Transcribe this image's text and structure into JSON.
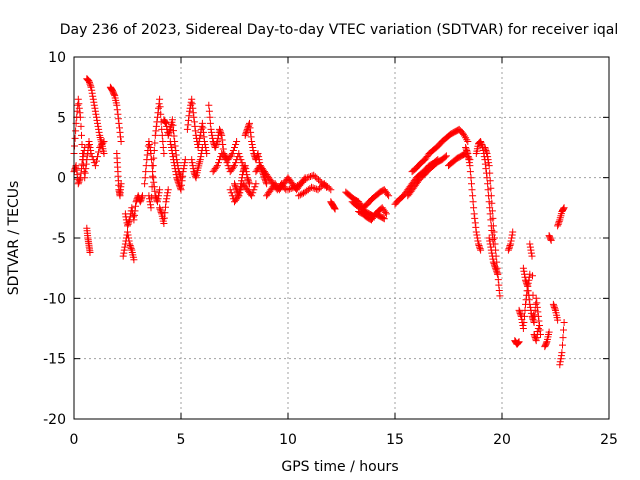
{
  "chart_data": {
    "type": "scatter",
    "title": "Day 236 of 2023, Sidereal Day-to-day VTEC variation (SDTVAR) for receiver iqal",
    "xlabel": "GPS time / hours",
    "ylabel": "SDTVAR / TECUs",
    "xlim": [
      0,
      25
    ],
    "ylim": [
      -20,
      10
    ],
    "xticks": [
      0,
      5,
      10,
      15,
      20,
      25
    ],
    "yticks": [
      -20,
      -15,
      -10,
      -5,
      0,
      5,
      10
    ],
    "xtick_labels": [
      "0",
      "5",
      "10",
      "15",
      "20",
      "25"
    ],
    "ytick_labels": [
      "-20",
      "-15",
      "-10",
      "-5",
      "0",
      "5",
      "10"
    ],
    "grid": true,
    "marker": "plus",
    "color": "#ff0000",
    "series": [
      {
        "name": "SDTVAR",
        "segments": [
          {
            "x": [
              0.0,
              0.1,
              0.2,
              0.3,
              0.4,
              0.5,
              0.6,
              0.7,
              0.8,
              1.0,
              1.2,
              1.4
            ],
            "y": [
              2.0,
              4.5,
              6.5,
              5.0,
              2.0,
              0.0,
              1.5,
              3.0,
              2.0,
              1.0,
              2.5,
              3.0
            ]
          },
          {
            "x": [
              0.0,
              0.1,
              0.2,
              0.3,
              0.4,
              0.5
            ],
            "y": [
              0.5,
              1.0,
              -0.5,
              0.0,
              1.5,
              2.5
            ]
          },
          {
            "x": [
              0.6,
              0.7,
              0.8,
              0.9,
              1.0,
              1.1,
              1.2,
              1.3,
              1.4
            ],
            "y": [
              8.2,
              8.0,
              7.5,
              6.5,
              5.5,
              4.5,
              3.5,
              2.8,
              2.0
            ]
          },
          {
            "x": [
              0.6,
              0.65,
              0.7,
              0.75
            ],
            "y": [
              -4.2,
              -5.0,
              -5.6,
              -6.2
            ]
          },
          {
            "x": [
              1.7,
              1.8,
              1.9,
              2.0,
              2.1,
              2.2
            ],
            "y": [
              7.5,
              7.2,
              6.8,
              6.0,
              4.5,
              3.0
            ]
          },
          {
            "x": [
              2.0,
              2.05,
              2.1,
              2.15,
              2.2
            ],
            "y": [
              2.0,
              0.5,
              -1.0,
              -1.5,
              -0.5
            ]
          },
          {
            "x": [
              2.3,
              2.4,
              2.5,
              2.6,
              2.7,
              2.8
            ],
            "y": [
              -6.5,
              -5.5,
              -4.5,
              -5.5,
              -6.0,
              -6.8
            ]
          },
          {
            "x": [
              2.4,
              2.5,
              2.6,
              2.7,
              2.8,
              2.9,
              3.0,
              3.1,
              3.2
            ],
            "y": [
              -3.0,
              -4.0,
              -3.5,
              -2.5,
              -3.5,
              -2.0,
              -1.5,
              -2.0,
              -1.5
            ]
          },
          {
            "x": [
              3.3,
              3.4,
              3.5,
              3.6,
              3.7,
              3.8,
              3.9,
              4.0
            ],
            "y": [
              -0.5,
              1.5,
              3.0,
              2.0,
              0.0,
              -1.5,
              -2.0,
              -1.0
            ]
          },
          {
            "x": [
              3.5,
              3.6,
              3.7,
              3.8,
              3.9,
              4.0,
              4.1,
              4.2
            ],
            "y": [
              -1.5,
              -2.5,
              1.0,
              3.5,
              5.0,
              6.5,
              4.0,
              2.0
            ]
          },
          {
            "x": [
              4.0,
              4.1,
              4.2,
              4.3,
              4.4
            ],
            "y": [
              -2.5,
              -3.0,
              -3.8,
              -2.0,
              -1.0
            ]
          },
          {
            "x": [
              4.2,
              4.3,
              4.4,
              4.5,
              4.6,
              4.7,
              4.8,
              4.9,
              5.0
            ],
            "y": [
              4.8,
              4.5,
              3.5,
              4.0,
              4.8,
              3.0,
              1.5,
              0.5,
              0.0
            ]
          },
          {
            "x": [
              4.5,
              4.6,
              4.7,
              4.8,
              4.9,
              5.0,
              5.1,
              5.2
            ],
            "y": [
              3.0,
              2.0,
              1.0,
              0.0,
              -0.5,
              -1.0,
              0.5,
              1.5
            ]
          },
          {
            "x": [
              5.3,
              5.4,
              5.5,
              5.6,
              5.7,
              5.8,
              5.9,
              6.0,
              6.1,
              6.2
            ],
            "y": [
              4.0,
              5.5,
              6.5,
              5.0,
              3.5,
              2.5,
              3.5,
              4.5,
              3.0,
              2.0
            ]
          },
          {
            "x": [
              5.5,
              5.6,
              5.7,
              5.8,
              5.9,
              6.0
            ],
            "y": [
              1.5,
              0.5,
              0.0,
              0.8,
              1.5,
              2.5
            ]
          },
          {
            "x": [
              6.3,
              6.4,
              6.5,
              6.6,
              6.7,
              6.8,
              6.9,
              7.0,
              7.2,
              7.4,
              7.6
            ],
            "y": [
              6.0,
              4.0,
              3.0,
              2.5,
              3.0,
              4.0,
              3.5,
              2.0,
              1.5,
              2.0,
              3.0
            ]
          },
          {
            "x": [
              6.5,
              6.7,
              6.9,
              7.1,
              7.3,
              7.5,
              7.7,
              7.9
            ],
            "y": [
              0.5,
              1.0,
              2.0,
              1.5,
              0.5,
              1.0,
              2.0,
              1.0
            ]
          },
          {
            "x": [
              7.5,
              7.6,
              7.7,
              7.8,
              7.9,
              8.0,
              8.1,
              8.2
            ],
            "y": [
              -0.5,
              -1.0,
              -1.5,
              -0.5,
              0.5,
              1.0,
              0.0,
              -0.5
            ]
          },
          {
            "x": [
              7.3,
              7.5,
              7.7,
              7.9,
              8.1,
              8.3,
              8.5
            ],
            "y": [
              -1.0,
              -2.0,
              -1.5,
              -0.5,
              -1.0,
              -1.5,
              -0.5
            ]
          },
          {
            "x": [
              8.0,
              8.1,
              8.2,
              8.3,
              8.4,
              8.5,
              8.6,
              8.7,
              8.8,
              8.9,
              9.0
            ],
            "y": [
              3.5,
              4.0,
              4.5,
              3.0,
              2.0,
              1.5,
              2.0,
              1.0,
              0.5,
              0.0,
              -0.5
            ]
          },
          {
            "x": [
              8.5,
              8.7,
              8.9,
              9.1,
              9.3,
              9.5,
              9.7,
              9.9
            ],
            "y": [
              0.5,
              1.0,
              0.5,
              0.0,
              -0.5,
              -1.0,
              -0.5,
              -1.0
            ]
          },
          {
            "x": [
              9.0,
              9.2,
              9.4,
              9.6,
              9.8,
              10.0,
              10.2,
              10.4,
              10.6,
              10.8
            ],
            "y": [
              -1.5,
              -1.0,
              -0.5,
              -1.0,
              -0.5,
              0.0,
              -0.5,
              -1.0,
              -0.5,
              0.0
            ]
          },
          {
            "x": [
              10.0,
              10.3,
              10.6,
              10.9,
              11.2,
              11.5,
              11.8
            ],
            "y": [
              -1.0,
              -0.8,
              -0.5,
              0.0,
              0.2,
              -0.3,
              -0.8
            ]
          },
          {
            "x": [
              10.5,
              10.8,
              11.1,
              11.4,
              11.7,
              12.0
            ],
            "y": [
              -1.5,
              -1.2,
              -0.8,
              -1.0,
              -0.5,
              -1.0
            ]
          },
          {
            "x": [
              12.0,
              12.1,
              12.2
            ],
            "y": [
              -2.0,
              -2.3,
              -2.6
            ]
          },
          {
            "x": [
              12.7,
              12.9,
              13.1,
              13.3,
              13.5,
              13.7,
              13.9,
              14.1,
              14.3,
              14.5,
              14.7
            ],
            "y": [
              -1.2,
              -1.5,
              -1.8,
              -2.0,
              -2.5,
              -2.2,
              -1.8,
              -1.5,
              -1.2,
              -1.0,
              -1.5
            ]
          },
          {
            "x": [
              13.0,
              13.2,
              13.4,
              13.6,
              13.8,
              14.0,
              14.2,
              14.4,
              14.6
            ],
            "y": [
              -2.0,
              -2.3,
              -2.5,
              -2.8,
              -3.0,
              -3.2,
              -2.8,
              -2.5,
              -3.0
            ]
          },
          {
            "x": [
              13.3,
              13.5,
              13.7,
              13.9,
              14.1,
              14.3,
              14.5
            ],
            "y": [
              -2.8,
              -3.0,
              -3.3,
              -3.5,
              -3.0,
              -3.2,
              -3.4
            ]
          },
          {
            "x": [
              15.0,
              15.2,
              15.4,
              15.6,
              15.8,
              16.0,
              16.2,
              16.4,
              16.6,
              16.8,
              17.0
            ],
            "y": [
              -2.2,
              -1.8,
              -1.5,
              -1.0,
              -0.5,
              0.0,
              0.3,
              0.6,
              1.0,
              1.2,
              1.5
            ]
          },
          {
            "x": [
              15.8,
              16.0,
              16.2,
              16.4,
              16.6,
              16.8,
              17.0,
              17.2,
              17.4,
              17.6,
              17.8,
              18.0,
              18.2,
              18.4
            ],
            "y": [
              0.5,
              0.8,
              1.2,
              1.5,
              2.0,
              2.3,
              2.6,
              3.0,
              3.3,
              3.6,
              3.8,
              4.0,
              3.6,
              3.0
            ]
          },
          {
            "x": [
              15.6,
              15.8,
              16.0,
              16.2,
              16.4,
              16.6,
              16.8,
              17.0,
              17.2,
              17.4
            ],
            "y": [
              -1.5,
              -1.0,
              -0.5,
              0.0,
              0.3,
              0.7,
              1.0,
              1.3,
              1.5,
              1.8
            ]
          },
          {
            "x": [
              17.5,
              17.7,
              17.9,
              18.1,
              18.3,
              18.5
            ],
            "y": [
              1.0,
              1.3,
              1.6,
              1.8,
              2.0,
              1.5
            ]
          },
          {
            "x": [
              18.3,
              18.4,
              18.5,
              18.6,
              18.7,
              18.8,
              18.9,
              19.0
            ],
            "y": [
              2.5,
              2.0,
              1.0,
              -1.0,
              -3.0,
              -4.5,
              -5.5,
              -6.0
            ]
          },
          {
            "x": [
              18.8,
              18.9,
              19.0,
              19.1,
              19.2,
              19.3,
              19.4,
              19.5,
              19.6
            ],
            "y": [
              2.0,
              2.8,
              3.0,
              2.5,
              1.5,
              0.0,
              -2.0,
              -4.0,
              -5.5
            ]
          },
          {
            "x": [
              19.2,
              19.3,
              19.4,
              19.5,
              19.6,
              19.7,
              19.8,
              19.9
            ],
            "y": [
              2.5,
              2.0,
              1.0,
              -1.5,
              -4.0,
              -6.0,
              -8.0,
              -9.8
            ]
          },
          {
            "x": [
              19.4,
              19.5,
              19.6,
              19.7,
              19.8
            ],
            "y": [
              -5.0,
              -6.0,
              -7.0,
              -7.5,
              -8.0
            ]
          },
          {
            "x": [
              20.3,
              20.4,
              20.5
            ],
            "y": [
              -6.0,
              -5.5,
              -4.5
            ]
          },
          {
            "x": [
              20.6,
              20.7,
              20.8
            ],
            "y": [
              -13.5,
              -13.8,
              -13.6
            ]
          },
          {
            "x": [
              20.8,
              20.9,
              21.0,
              21.1,
              21.2,
              21.3,
              21.4,
              21.5,
              21.6,
              21.7,
              21.8
            ],
            "y": [
              -11.0,
              -11.5,
              -12.5,
              -10.5,
              -9.0,
              -10.5,
              -11.5,
              -12.0,
              -10.0,
              -11.5,
              -13.0
            ]
          },
          {
            "x": [
              21.0,
              21.1,
              21.2,
              21.3
            ],
            "y": [
              -7.5,
              -8.5,
              -9.0,
              -8.0
            ]
          },
          {
            "x": [
              21.3,
              21.4,
              21.5,
              21.6,
              21.7
            ],
            "y": [
              -5.5,
              -6.5,
              -13.0,
              -13.5,
              -12.5
            ]
          },
          {
            "x": [
              22.0,
              22.1,
              22.2
            ],
            "y": [
              -14.0,
              -13.6,
              -12.8
            ]
          },
          {
            "x": [
              22.2,
              22.3
            ],
            "y": [
              -4.8,
              -5.2
            ]
          },
          {
            "x": [
              22.4,
              22.5,
              22.6
            ],
            "y": [
              -10.5,
              -11.0,
              -11.8
            ]
          },
          {
            "x": [
              22.7,
              22.8,
              22.9
            ],
            "y": [
              -15.5,
              -14.5,
              -12.0
            ]
          },
          {
            "x": [
              22.6,
              22.7,
              22.8,
              22.9
            ],
            "y": [
              -4.0,
              -3.5,
              -2.8,
              -2.5
            ]
          }
        ]
      }
    ]
  }
}
